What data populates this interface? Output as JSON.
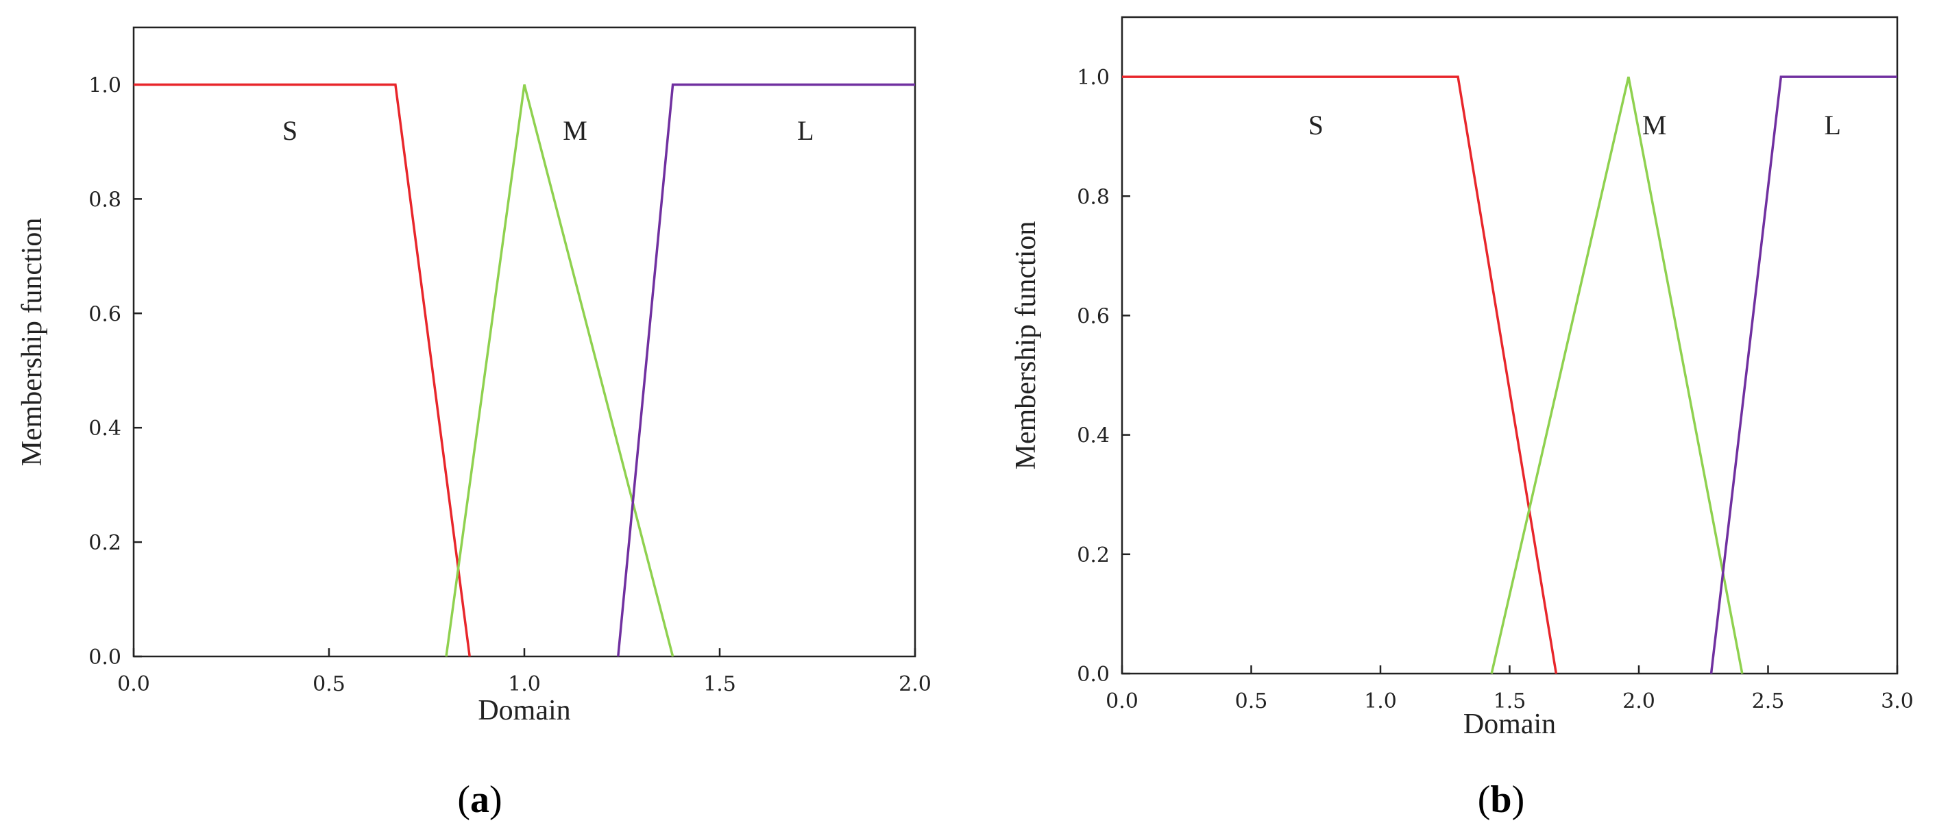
{
  "chart_data": [
    {
      "type": "line",
      "panel_label": "a",
      "xlabel": "Domain",
      "ylabel": "Membership function",
      "xlim": [
        0,
        2
      ],
      "ylim": [
        0,
        1.1
      ],
      "x_ticks": [
        "0.0",
        "0.5",
        "1.0",
        "1.5",
        "2.0"
      ],
      "y_ticks": [
        "0.0",
        "0.2",
        "0.4",
        "0.6",
        "0.8",
        "1.0"
      ],
      "x_tick_values": [
        0,
        0.5,
        1.0,
        1.5,
        2.0
      ],
      "y_tick_values": [
        0,
        0.2,
        0.4,
        0.6,
        0.8,
        1.0
      ],
      "grid": false,
      "series": [
        {
          "name": "S",
          "color": "#e8262b",
          "x": [
            0,
            0.67,
            0.86
          ],
          "y": [
            1,
            1,
            0
          ],
          "label_x": 0.4,
          "label_y": 0.92
        },
        {
          "name": "M",
          "color": "#8fd14f",
          "x": [
            0.8,
            1.0,
            1.38
          ],
          "y": [
            0,
            1,
            0
          ],
          "label_x": 1.13,
          "label_y": 0.92
        },
        {
          "name": "L",
          "color": "#7030a0",
          "x": [
            1.24,
            1.38,
            2.0
          ],
          "y": [
            0,
            1,
            1
          ],
          "label_x": 1.72,
          "label_y": 0.92
        }
      ]
    },
    {
      "type": "line",
      "panel_label": "b",
      "xlabel": "Domain",
      "ylabel": "Membership function",
      "xlim": [
        0,
        3
      ],
      "ylim": [
        0,
        1.1
      ],
      "x_ticks": [
        "0.0",
        "0.5",
        "1.0",
        "1.5",
        "2.0",
        "2.5",
        "3.0"
      ],
      "y_ticks": [
        "0.0",
        "0.2",
        "0.4",
        "0.6",
        "0.8",
        "1.0"
      ],
      "x_tick_values": [
        0,
        0.5,
        1.0,
        1.5,
        2.0,
        2.5,
        3.0
      ],
      "y_tick_values": [
        0,
        0.2,
        0.4,
        0.6,
        0.8,
        1.0
      ],
      "grid": false,
      "series": [
        {
          "name": "S",
          "color": "#e8262b",
          "x": [
            0,
            1.3,
            1.68
          ],
          "y": [
            1,
            1,
            0
          ],
          "label_x": 0.75,
          "label_y": 0.92
        },
        {
          "name": "M",
          "color": "#8fd14f",
          "x": [
            1.43,
            1.96,
            2.4
          ],
          "y": [
            0,
            1,
            0
          ],
          "label_x": 2.06,
          "label_y": 0.92
        },
        {
          "name": "L",
          "color": "#7030a0",
          "x": [
            2.28,
            2.55,
            3.0
          ],
          "y": [
            0,
            1,
            1
          ],
          "label_x": 2.75,
          "label_y": 0.92
        }
      ]
    }
  ]
}
